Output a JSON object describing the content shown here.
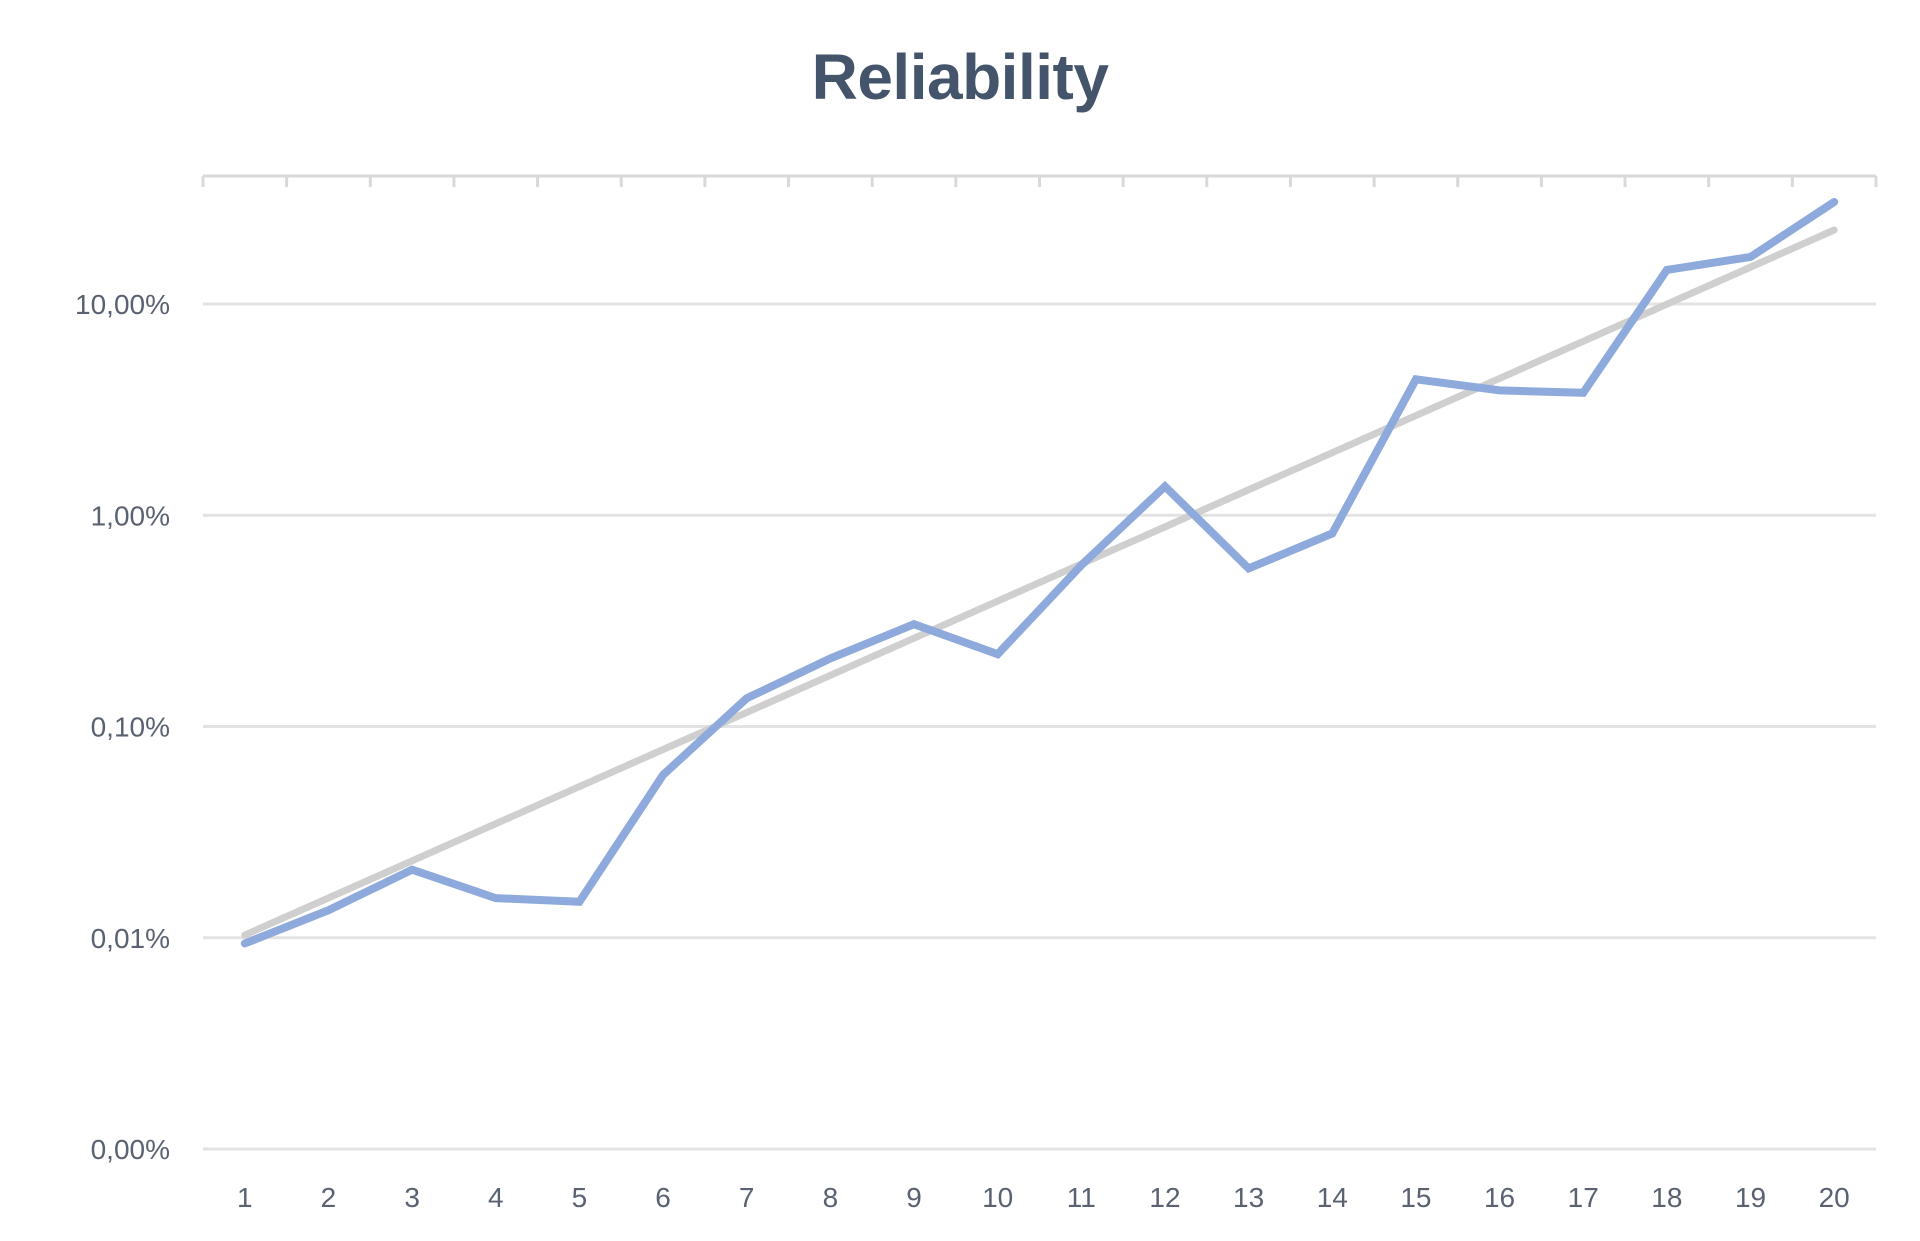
{
  "chart_data": {
    "type": "line",
    "title": "Reliability",
    "xlabel": "",
    "ylabel": "",
    "yscale": "log",
    "ylim_percent": [
      0.001,
      40
    ],
    "y_ticks": [
      {
        "value": 10,
        "label": "10,00%"
      },
      {
        "value": 1,
        "label": "1,00%"
      },
      {
        "value": 0.1,
        "label": "0,10%"
      },
      {
        "value": 0.01,
        "label": "0,01%"
      },
      {
        "value": 0.001,
        "label": "0,00%"
      }
    ],
    "categories": [
      "1",
      "2",
      "3",
      "4",
      "5",
      "6",
      "7",
      "8",
      "9",
      "10",
      "11",
      "12",
      "13",
      "14",
      "15",
      "16",
      "17",
      "18",
      "19",
      "20"
    ],
    "series": [
      {
        "name": "Reliability",
        "color": "#8eaadc",
        "unit": "%",
        "values": [
          0.0094,
          0.0135,
          0.021,
          0.0154,
          0.0148,
          0.059,
          0.136,
          0.21,
          0.305,
          0.22,
          0.58,
          1.37,
          0.56,
          0.82,
          4.4,
          3.9,
          3.8,
          14.5,
          16.7,
          30.4
        ]
      },
      {
        "name": "Exponential trendline",
        "color": "#cfcfcf",
        "unit": "%",
        "type": "trend-exponential",
        "start": 0.0103,
        "end": 22.4
      }
    ],
    "grid": true,
    "legend": "none"
  },
  "colors": {
    "title": "#44546a",
    "axis_text": "#5a6272",
    "grid": "#e3e3e3",
    "axis_line": "#d9d9d9"
  }
}
